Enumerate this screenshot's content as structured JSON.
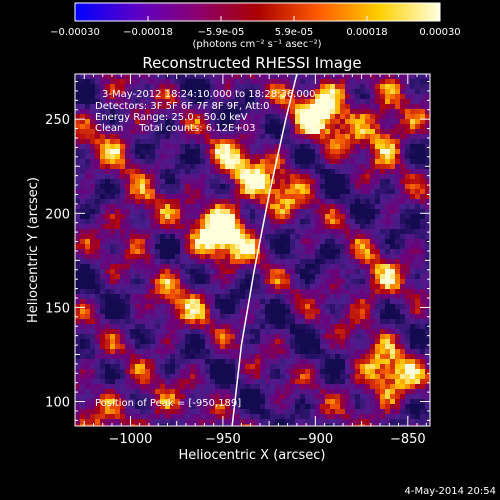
{
  "colorbar": {
    "ticks": [
      "-0.00030",
      "-0.00018",
      "-5.9e-05",
      "5.9e-05",
      "0.00018",
      "0.00030"
    ],
    "unit_label": "(photons cm⁻² s⁻¹ asec⁻²)",
    "range": [
      -0.0003,
      0.0003
    ],
    "colors": [
      "#0000ff",
      "#5a00c8",
      "#8a0070",
      "#aa0000",
      "#ff5a00",
      "#ffd000",
      "#ffffe0"
    ]
  },
  "chart_data": {
    "type": "heatmap",
    "title": "Reconstructed RHESSI Image",
    "xlabel": "Heliocentric X (arcsec)",
    "ylabel": "Heliocentric Y (arcsec)",
    "xlim": [
      -1030,
      -838
    ],
    "ylim": [
      87,
      274
    ],
    "x_ticks": [
      -1000,
      -950,
      -900,
      -850
    ],
    "x_tick_labels": [
      "−1000",
      "−950",
      "−900",
      "−850"
    ],
    "y_ticks": [
      100,
      150,
      200,
      250
    ],
    "y_tick_labels": [
      "100",
      "150",
      "200",
      "250"
    ],
    "annotations": [
      "3-May-2012 18:24:10.000 to 18:28:36.000",
      "Detectors: 3F 5F 6F 7F 8F 9F, Att:0",
      "Energy Range: 25.0 - 50.0 keV",
      "Clean     Total counts: 6.12E+03"
    ],
    "peak_label": "Position of Peak = [-950,189]",
    "peak": [
      -950,
      189
    ],
    "bright_sources": [
      {
        "x": -950,
        "y": 189,
        "strength": 1.0
      },
      {
        "x": -895,
        "y": 256,
        "strength": 0.95
      },
      {
        "x": -862,
        "y": 244,
        "strength": 0.7
      },
      {
        "x": -862,
        "y": 112,
        "strength": 0.8
      },
      {
        "x": -942,
        "y": 225,
        "strength": 0.55
      },
      {
        "x": -975,
        "y": 150,
        "strength": 0.4
      },
      {
        "x": -995,
        "y": 198,
        "strength": 0.45
      },
      {
        "x": -920,
        "y": 212,
        "strength": 0.5
      },
      {
        "x": -868,
        "y": 162,
        "strength": 0.5
      },
      {
        "x": -1010,
        "y": 240,
        "strength": 0.4
      },
      {
        "x": -1015,
        "y": 100,
        "strength": 0.35
      },
      {
        "x": -988,
        "y": 95,
        "strength": 0.35
      }
    ],
    "limb": [
      [
        -945,
        87
      ],
      [
        -940,
        130
      ],
      [
        -933,
        170
      ],
      [
        -925,
        210
      ],
      [
        -916,
        250
      ],
      [
        -910,
        274
      ]
    ]
  },
  "footer": {
    "timestamp": "4-May-2014 20:54"
  }
}
